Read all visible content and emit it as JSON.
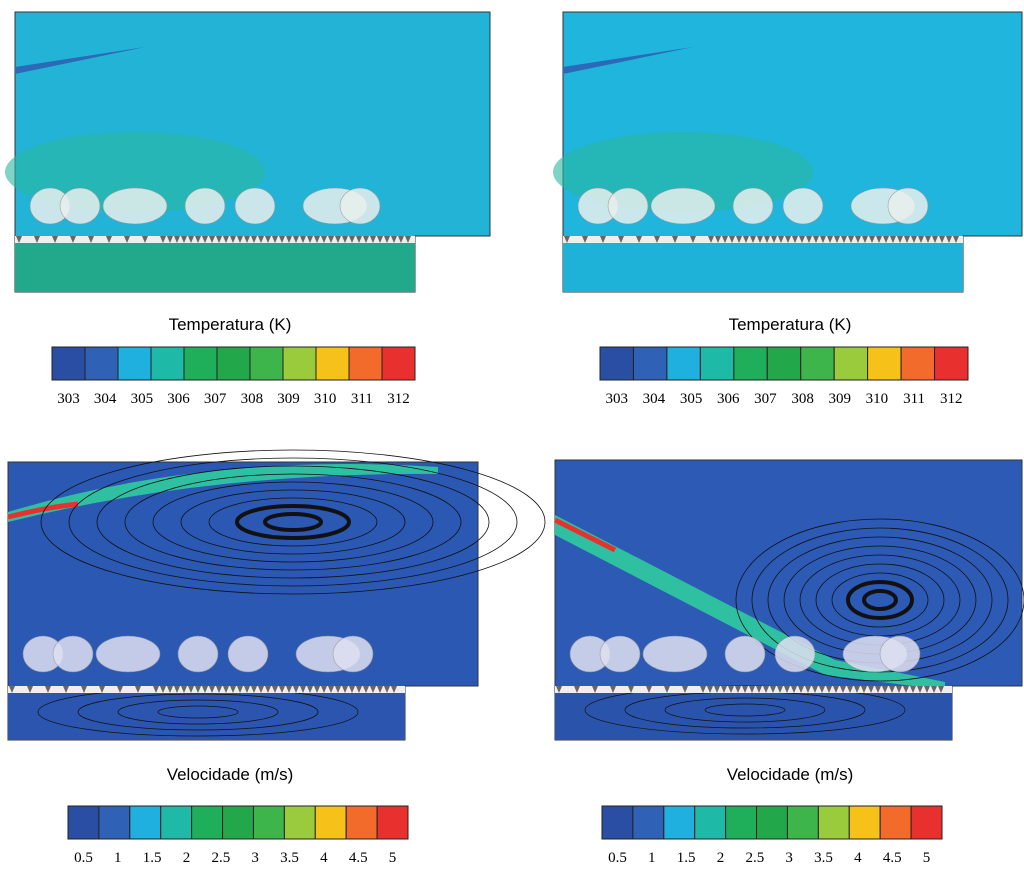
{
  "colorbar_colors": [
    "#2a4ea3",
    "#2f62b6",
    "#1fb0e0",
    "#1fb9a8",
    "#1fae5a",
    "#22a84a",
    "#3db54a",
    "#9acb3c",
    "#f6c21a",
    "#f26b2a",
    "#e8312f"
  ],
  "panels": [
    {
      "legend": {
        "title": "Temperatura (K)",
        "ticks": [
          303,
          304,
          305,
          306,
          307,
          308,
          309,
          310,
          311,
          312
        ]
      }
    },
    {
      "legend": {
        "title": "Temperatura (K)",
        "ticks": [
          303,
          304,
          305,
          306,
          307,
          308,
          309,
          310,
          311,
          312
        ]
      }
    },
    {
      "legend": {
        "title": "Velocidade (m/s)",
        "ticks": [
          0.5,
          1,
          1.5,
          2,
          2.5,
          3,
          3.5,
          4,
          4.5,
          5
        ]
      }
    },
    {
      "legend": {
        "title": "Velocidade (m/s)",
        "ticks": [
          0.5,
          1,
          1.5,
          2,
          2.5,
          3,
          3.5,
          4,
          4.5,
          5
        ]
      }
    }
  ]
}
